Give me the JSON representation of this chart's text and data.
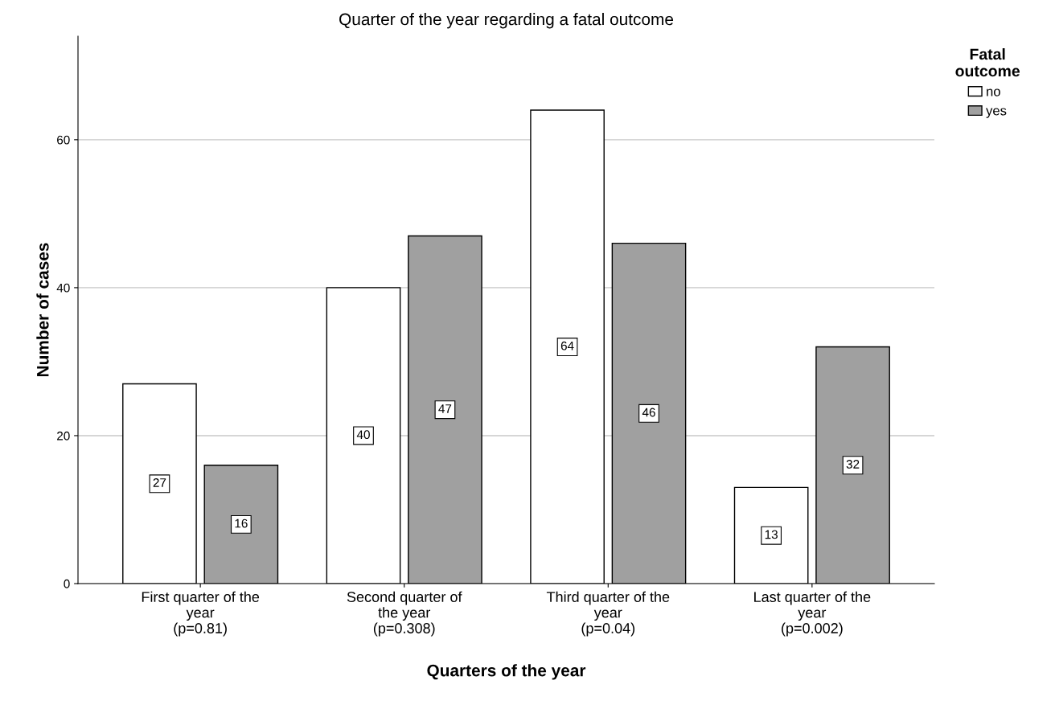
{
  "chart_data": {
    "type": "bar",
    "title": "Quarter of the year regarding a fatal outcome",
    "xlabel": "Quarters of the year",
    "ylabel": "Number of cases",
    "legend_title": "Fatal\noutcome",
    "categories": [
      "First quarter of the\nyear\n(p=0.81)",
      "Second quarter of\nthe year\n(p=0.308)",
      "Third quarter of the\nyear\n(p=0.04)",
      "Last quarter of the\nyear\n(p=0.002)"
    ],
    "series": [
      {
        "name": "no",
        "color": "#ffffff",
        "values": [
          27,
          40,
          64,
          13
        ]
      },
      {
        "name": "yes",
        "color": "#a0a0a0",
        "values": [
          16,
          47,
          46,
          32
        ]
      }
    ],
    "ylim": [
      0,
      74
    ],
    "yticks": [
      0,
      20,
      40,
      60
    ],
    "grid": "y",
    "legend": "top right",
    "data_labels": true
  }
}
